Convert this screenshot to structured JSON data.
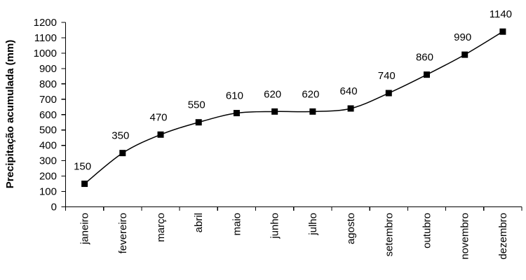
{
  "chart_data": {
    "type": "line",
    "title": "",
    "ylabel": "Precipitação acumulada (mm)",
    "xlabel": "",
    "categories": [
      "janeiro",
      "fevereiro",
      "março",
      "abril",
      "maio",
      "junho",
      "julho",
      "agosto",
      "setembro",
      "outubro",
      "novembro",
      "dezembro"
    ],
    "values": [
      150,
      350,
      470,
      550,
      610,
      620,
      620,
      640,
      740,
      860,
      990,
      1140
    ],
    "ylim": [
      0,
      1200
    ],
    "yticks": [
      0,
      100,
      200,
      300,
      400,
      500,
      600,
      700,
      800,
      900,
      1000,
      1100,
      1200
    ],
    "grid": false,
    "legend": "none",
    "line": {
      "color": "#000000",
      "smoothed": true,
      "width": 1.5
    },
    "marker": {
      "shape": "square",
      "color": "#000000",
      "size": 9
    },
    "data_labels": {
      "show": true,
      "position": "above"
    },
    "background": "#ffffff",
    "text_color": "#000000"
  }
}
